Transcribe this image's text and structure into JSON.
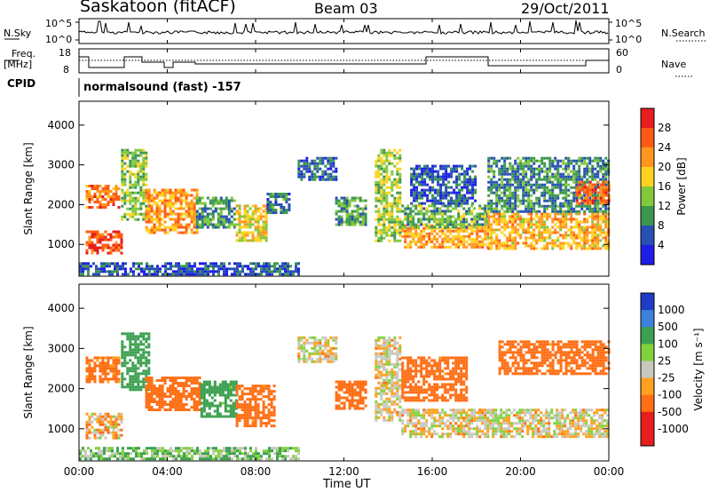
{
  "header": {
    "title": "Saskatoon (fitACF)",
    "beam": "Beam 03",
    "date": "29/Oct/2011"
  },
  "nsky": {
    "label": "N.Sky",
    "tick_top": "10^5",
    "tick_bot": "10^0",
    "right_label": "N.Search",
    "right_top": "10^5",
    "right_bot": "10^0"
  },
  "freq": {
    "label1": "Freq.",
    "label2": "[MHz]",
    "ticks_left": [
      "18",
      "8"
    ],
    "ticks_right": [
      "60",
      "0"
    ],
    "right_label": "Nave"
  },
  "cpid": {
    "label": "CPID",
    "text": "normalsound (fast) -157"
  },
  "chart_data": [
    {
      "type": "heatmap",
      "panel": "power",
      "ylabel": "Slant Range [km]",
      "ylim": [
        200,
        4600
      ],
      "yticks": [
        "4000",
        "3000",
        "2000",
        "1000"
      ],
      "colorbar": {
        "label": "Power [dB]",
        "ticks": [
          "28",
          "24",
          "20",
          "16",
          "12",
          "8",
          "4"
        ],
        "colors": [
          "#e61e1e",
          "#ff5a14",
          "#ff961e",
          "#ffd21e",
          "#82c83c",
          "#3c9650",
          "#2850b4",
          "#1e1ee6"
        ]
      },
      "regions": [
        {
          "t": [
            0.3,
            1.9
          ],
          "r": [
            800,
            1350
          ],
          "v": 27
        },
        {
          "t": [
            0.3,
            1.8
          ],
          "r": [
            1900,
            2500
          ],
          "v": 24
        },
        {
          "t": [
            1.9,
            3.0
          ],
          "r": [
            1600,
            3400
          ],
          "v": 14
        },
        {
          "t": [
            3.0,
            5.3
          ],
          "r": [
            1300,
            2400
          ],
          "v": 22
        },
        {
          "t": [
            5.3,
            7.1
          ],
          "r": [
            1400,
            2200
          ],
          "v": 10
        },
        {
          "t": [
            7.1,
            8.5
          ],
          "r": [
            1100,
            2000
          ],
          "v": 18
        },
        {
          "t": [
            8.5,
            9.5
          ],
          "r": [
            1800,
            2300
          ],
          "v": 8
        },
        {
          "t": [
            9.9,
            11.6
          ],
          "r": [
            2600,
            3200
          ],
          "v": 7
        },
        {
          "t": [
            11.6,
            13.0
          ],
          "r": [
            1500,
            2200
          ],
          "v": 11
        },
        {
          "t": [
            13.4,
            14.6
          ],
          "r": [
            1100,
            3400
          ],
          "v": 15
        },
        {
          "t": [
            14.6,
            18.5
          ],
          "r": [
            900,
            1500
          ],
          "v": 21
        },
        {
          "t": [
            14.6,
            18.5
          ],
          "r": [
            1400,
            2000
          ],
          "v": 12
        },
        {
          "t": [
            15.0,
            18.0
          ],
          "r": [
            2000,
            3000
          ],
          "v": 6
        },
        {
          "t": [
            18.5,
            24.0
          ],
          "r": [
            900,
            1800
          ],
          "v": 20
        },
        {
          "t": [
            18.5,
            24.0
          ],
          "r": [
            1800,
            3200
          ],
          "v": 9
        },
        {
          "t": [
            22.5,
            24.0
          ],
          "r": [
            2000,
            2600
          ],
          "v": 25
        },
        {
          "t": [
            0.0,
            10.0
          ],
          "r": [
            250,
            550
          ],
          "v": 6
        }
      ]
    },
    {
      "type": "heatmap",
      "panel": "velocity",
      "ylabel": "Slant Range [km]",
      "ylim": [
        200,
        4600
      ],
      "yticks": [
        "4000",
        "3000",
        "2000",
        "1000"
      ],
      "colorbar": {
        "label": "Velocity [m s⁻¹]",
        "ticks": [
          "1000",
          "500",
          "100",
          "25",
          "-25",
          "-100",
          "-500",
          "-1000"
        ],
        "colors": [
          "#1e3cc8",
          "#3c82dc",
          "#3ca050",
          "#82d23c",
          "#c8c8be",
          "#ffa01e",
          "#ff6e14",
          "#e61e1e",
          "#e61e1e"
        ]
      },
      "regions": [
        {
          "t": [
            0.3,
            1.9
          ],
          "r": [
            800,
            1400
          ],
          "v": -25
        },
        {
          "t": [
            0.3,
            1.8
          ],
          "r": [
            2200,
            2800
          ],
          "v": -100
        },
        {
          "t": [
            1.9,
            3.2
          ],
          "r": [
            2000,
            3400
          ],
          "v": 150
        },
        {
          "t": [
            3.0,
            5.5
          ],
          "r": [
            1500,
            2300
          ],
          "v": -150
        },
        {
          "t": [
            5.5,
            7.1
          ],
          "r": [
            1300,
            2200
          ],
          "v": 120
        },
        {
          "t": [
            7.1,
            8.8
          ],
          "r": [
            1100,
            2100
          ],
          "v": -120
        },
        {
          "t": [
            9.9,
            11.6
          ],
          "r": [
            2700,
            3300
          ],
          "v": -10
        },
        {
          "t": [
            11.6,
            13.0
          ],
          "r": [
            1500,
            2200
          ],
          "v": -120
        },
        {
          "t": [
            13.4,
            14.6
          ],
          "r": [
            1200,
            3300
          ],
          "v": -10
        },
        {
          "t": [
            14.6,
            24.0
          ],
          "r": [
            800,
            1500
          ],
          "v": -10
        },
        {
          "t": [
            14.6,
            17.5
          ],
          "r": [
            1700,
            2800
          ],
          "v": -120
        },
        {
          "t": [
            19.0,
            24.0
          ],
          "r": [
            2400,
            3200
          ],
          "v": -120
        },
        {
          "t": [
            0.0,
            10.0
          ],
          "r": [
            250,
            550
          ],
          "v": 50
        }
      ]
    }
  ],
  "xaxis": {
    "title": "Time UT",
    "ticks": [
      "00:00",
      "04:00",
      "08:00",
      "12:00",
      "16:00",
      "20:00",
      "00:00"
    ]
  }
}
